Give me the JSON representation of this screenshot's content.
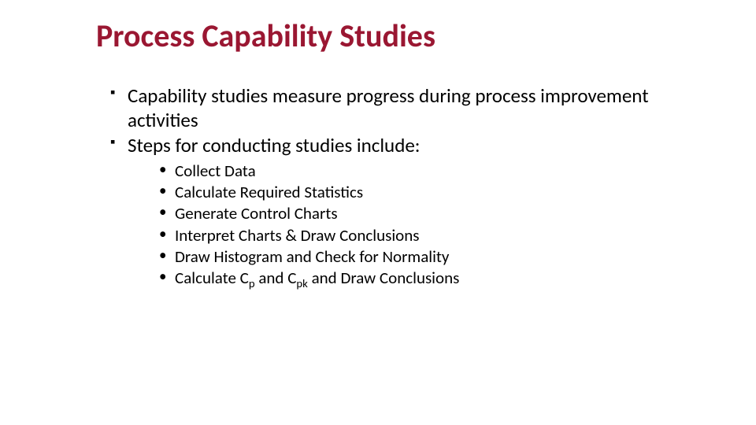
{
  "slide": {
    "title": "Process Capability Studies",
    "title_color": "#9a1732",
    "title_fontsize": 40,
    "body_fontsize_lvl1": 25,
    "body_fontsize_lvl2": 21,
    "text_color": "#000000",
    "background_color": "#ffffff",
    "bullets_lvl1": [
      {
        "text": "Capability studies measure progress during process improvement activities"
      },
      {
        "text": "Steps for conducting studies include:"
      }
    ],
    "bullets_lvl2": [
      {
        "text": "Collect Data"
      },
      {
        "text": "Calculate Required Statistics"
      },
      {
        "text": "Generate Control Charts"
      },
      {
        "text": "Interpret Charts & Draw Conclusions"
      },
      {
        "text": "Draw Histogram and Check for Normality"
      },
      {
        "prefix": "Calculate C",
        "sub1": "p",
        "mid": " and C",
        "sub2": "pk",
        "suffix": " and Draw Conclusions"
      }
    ]
  }
}
